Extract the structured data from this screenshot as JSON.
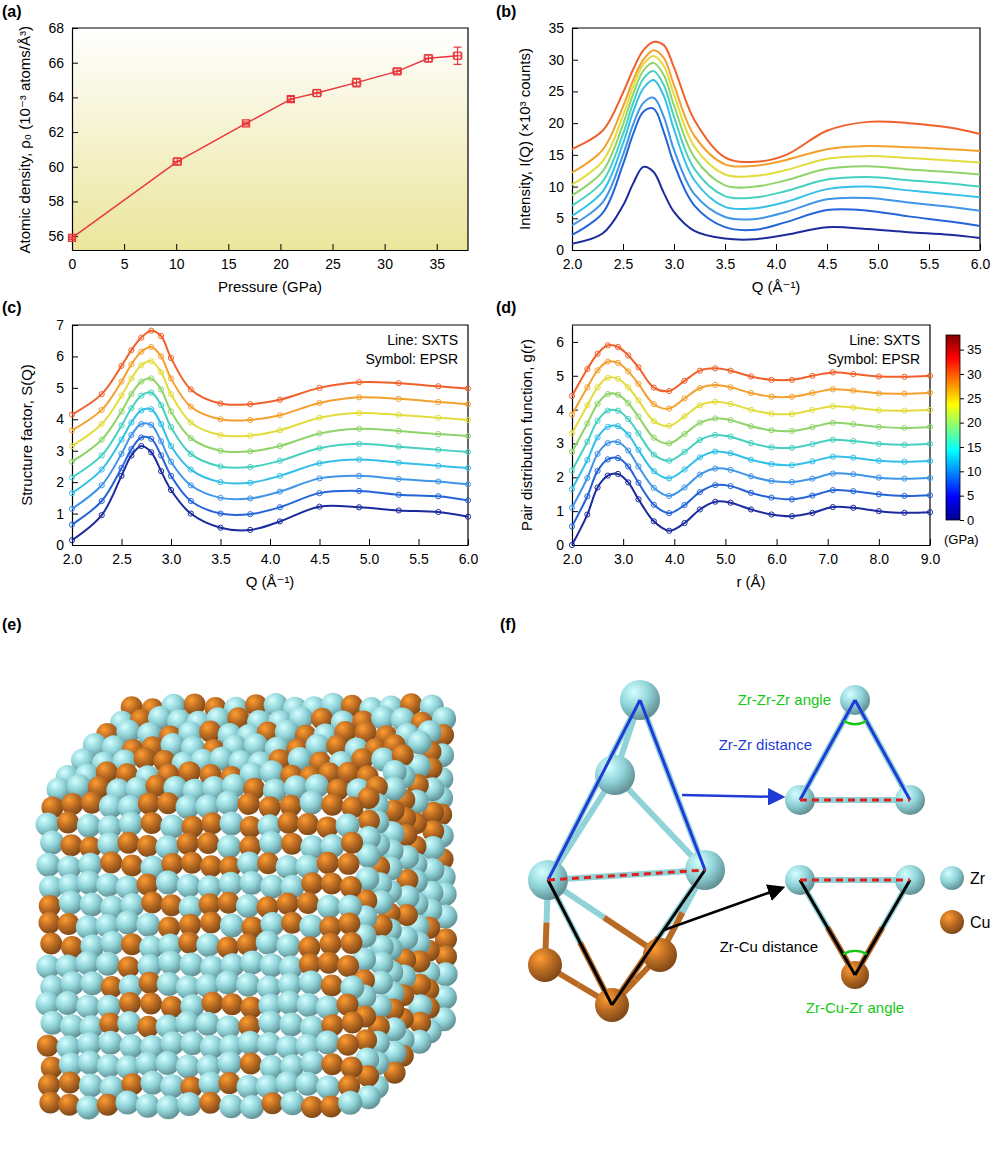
{
  "chart_data": [
    {
      "type": "line",
      "title": "(a)",
      "x_label": "Pressure (GPa)",
      "y_label": "Atomic density, ρ₀ (10⁻³ atoms/Å³)",
      "x": [
        0,
        10.1,
        16.7,
        21,
        23.5,
        27.3,
        31.2,
        34.2,
        37
      ],
      "series": [
        {
          "color": "#e8383d",
          "marker": "square",
          "values": [
            55.9,
            60.3,
            62.5,
            63.9,
            64.25,
            64.85,
            65.5,
            66.25,
            66.4
          ],
          "errors": [
            0.1,
            0.2,
            0.08,
            0.15,
            0.2,
            0.25,
            0.15,
            0.2,
            0.5
          ],
          "x_errors": [
            0.3,
            0.4,
            0.3,
            0.3,
            0.4,
            0.4,
            0.4,
            0.4,
            0.4
          ]
        }
      ],
      "line_style": "solid",
      "xlim": [
        0,
        38
      ],
      "xticks": [
        0,
        5,
        10,
        15,
        20,
        25,
        30,
        35
      ],
      "ylim": [
        55.2,
        68
      ],
      "yticks": [
        56,
        58,
        60,
        62,
        64,
        66,
        68
      ]
    },
    {
      "type": "line",
      "title": "(b)",
      "x_label": "Q (Å⁻¹)",
      "y_label": "Intensity, I(Q) (×10³ counts)",
      "x": [
        2.0,
        2.3,
        2.5,
        2.6,
        2.7,
        2.8,
        2.9,
        3.0,
        3.2,
        3.5,
        3.8,
        4.1,
        4.5,
        4.9,
        5.3,
        5.7,
        6.0
      ],
      "series": [
        {
          "color": "#1b2b9e",
          "values": [
            1.0,
            2.6,
            7.0,
            10.5,
            13.1,
            12.3,
            9.0,
            6.0,
            3.0,
            1.8,
            1.7,
            2.4,
            3.6,
            3.3,
            2.8,
            2.4,
            1.9
          ]
        },
        {
          "color": "#2464d8",
          "values": [
            2.4,
            5.8,
            13.5,
            18.3,
            21.8,
            22.3,
            18.6,
            13.6,
            7.0,
            3.6,
            3.2,
            4.4,
            6.3,
            6.2,
            5.3,
            4.5,
            3.8
          ]
        },
        {
          "color": "#3f95e8",
          "values": [
            3.9,
            7.5,
            15.0,
            19.8,
            23.2,
            24.0,
            21.0,
            15.8,
            8.8,
            5.2,
            4.9,
            6.0,
            8.0,
            8.2,
            7.5,
            6.8,
            6.2
          ]
        },
        {
          "color": "#33c0e8",
          "values": [
            5.4,
            9.2,
            16.8,
            21.8,
            25.5,
            26.8,
            24.3,
            19.0,
            11.0,
            6.8,
            6.6,
            7.6,
            9.6,
            10.0,
            9.4,
            8.8,
            8.3
          ]
        },
        {
          "color": "#45d0c0",
          "values": [
            7.0,
            10.8,
            18.3,
            23.2,
            27.0,
            28.2,
            26.0,
            21.0,
            12.8,
            8.5,
            8.3,
            9.3,
            11.1,
            11.5,
            11.0,
            10.5,
            10.0
          ]
        },
        {
          "color": "#8fd46a",
          "values": [
            8.6,
            12.4,
            19.8,
            24.6,
            28.3,
            29.5,
            27.6,
            22.8,
            14.6,
            10.2,
            10.0,
            11.0,
            12.8,
            13.2,
            12.7,
            12.3,
            11.9
          ]
        },
        {
          "color": "#e2dc3c",
          "values": [
            10.3,
            14.0,
            21.2,
            25.8,
            29.3,
            30.6,
            29.0,
            24.5,
            16.3,
            11.9,
            11.7,
            12.6,
            14.4,
            14.8,
            14.5,
            14.1,
            13.8
          ]
        },
        {
          "color": "#f4a02e",
          "values": [
            12.2,
            15.8,
            22.6,
            26.8,
            30.0,
            31.5,
            30.3,
            26.0,
            18.0,
            13.5,
            13.3,
            14.2,
            15.9,
            16.4,
            16.2,
            15.9,
            15.6
          ]
        },
        {
          "color": "#f0602a",
          "values": [
            15.9,
            18.8,
            24.8,
            28.5,
            31.5,
            32.8,
            32.3,
            28.8,
            20.5,
            14.6,
            13.9,
            15.0,
            18.8,
            20.2,
            20.0,
            19.3,
            18.3
          ]
        }
      ],
      "line_style": "smooth",
      "xlim": [
        2,
        6
      ],
      "xticks": [
        {
          "value": 2,
          "label": "2.0"
        },
        {
          "value": 2.5,
          "label": "2.5"
        },
        {
          "value": 3,
          "label": "3.0"
        },
        {
          "value": 3.5,
          "label": "3.5"
        },
        {
          "value": 4,
          "label": "4.0"
        },
        {
          "value": 4.5,
          "label": "4.5"
        },
        {
          "value": 5,
          "label": "5.0"
        },
        {
          "value": 5.5,
          "label": "5.5"
        },
        {
          "value": 6,
          "label": "6.0"
        }
      ],
      "ylim": [
        0,
        35
      ],
      "yticks": [
        0,
        5,
        10,
        15,
        20,
        25,
        30,
        35
      ]
    },
    {
      "type": "line",
      "title": "(c)",
      "x_label": "Q (Å⁻¹)",
      "y_label": "Structure factor, S(Q)",
      "annotations": [
        "Line: SXTS",
        "Symbol: EPSR"
      ],
      "x": [
        2.0,
        2.3,
        2.5,
        2.6,
        2.7,
        2.8,
        2.9,
        3.0,
        3.2,
        3.5,
        3.8,
        4.1,
        4.5,
        4.9,
        5.3,
        5.7,
        6.0
      ],
      "series": [
        {
          "color": "#1b2b9e",
          "marker": "circle",
          "values": [
            0.15,
            0.95,
            2.2,
            2.85,
            3.15,
            2.95,
            2.35,
            1.75,
            1.0,
            0.55,
            0.48,
            0.75,
            1.22,
            1.2,
            1.1,
            1.05,
            0.9
          ]
        },
        {
          "color": "#2464d8",
          "marker": "circle",
          "values": [
            0.65,
            1.4,
            2.45,
            3.05,
            3.42,
            3.38,
            2.85,
            2.2,
            1.4,
            1.0,
            0.98,
            1.2,
            1.65,
            1.72,
            1.6,
            1.55,
            1.42
          ]
        },
        {
          "color": "#3f95e8",
          "marker": "circle",
          "values": [
            1.15,
            1.9,
            2.9,
            3.5,
            3.85,
            3.82,
            3.3,
            2.65,
            1.9,
            1.5,
            1.48,
            1.7,
            2.12,
            2.2,
            2.1,
            2.02,
            1.93
          ]
        },
        {
          "color": "#33c0e8",
          "marker": "circle",
          "values": [
            1.65,
            2.4,
            3.35,
            3.9,
            4.28,
            4.32,
            3.85,
            3.15,
            2.4,
            2.0,
            1.98,
            2.2,
            2.6,
            2.72,
            2.62,
            2.52,
            2.45
          ]
        },
        {
          "color": "#45d0c0",
          "marker": "circle",
          "values": [
            2.15,
            2.85,
            3.8,
            4.35,
            4.75,
            4.85,
            4.45,
            3.75,
            2.9,
            2.5,
            2.48,
            2.68,
            3.08,
            3.22,
            3.13,
            3.03,
            2.96
          ]
        },
        {
          "color": "#8fd46a",
          "marker": "circle",
          "values": [
            2.65,
            3.35,
            4.25,
            4.8,
            5.2,
            5.3,
            4.95,
            4.25,
            3.4,
            3.0,
            2.98,
            3.15,
            3.55,
            3.7,
            3.63,
            3.53,
            3.47
          ]
        },
        {
          "color": "#e2dc3c",
          "marker": "circle",
          "values": [
            3.15,
            3.85,
            4.75,
            5.3,
            5.72,
            5.85,
            5.5,
            4.8,
            3.9,
            3.5,
            3.48,
            3.65,
            4.05,
            4.2,
            4.14,
            4.05,
            3.98
          ]
        },
        {
          "color": "#f4a02e",
          "marker": "circle",
          "values": [
            3.65,
            4.3,
            5.2,
            5.75,
            6.15,
            6.3,
            6.0,
            5.3,
            4.4,
            4.0,
            3.98,
            4.13,
            4.52,
            4.7,
            4.65,
            4.55,
            4.48
          ]
        },
        {
          "color": "#f0602a",
          "marker": "circle",
          "values": [
            4.15,
            4.8,
            5.7,
            6.2,
            6.6,
            6.82,
            6.65,
            5.95,
            4.95,
            4.5,
            4.48,
            4.62,
            5.0,
            5.18,
            5.15,
            5.05,
            4.98
          ]
        }
      ],
      "line_style": "smooth",
      "xlim": [
        2,
        6
      ],
      "xticks": [
        {
          "value": 2,
          "label": "2.0"
        },
        {
          "value": 2.5,
          "label": "2.5"
        },
        {
          "value": 3,
          "label": "3.0"
        },
        {
          "value": 3.5,
          "label": "3.5"
        },
        {
          "value": 4,
          "label": "4.0"
        },
        {
          "value": 4.5,
          "label": "4.5"
        },
        {
          "value": 5,
          "label": "5.0"
        },
        {
          "value": 5.5,
          "label": "5.5"
        },
        {
          "value": 6,
          "label": "6.0"
        }
      ],
      "ylim": [
        0,
        7
      ],
      "yticks": [
        0,
        1,
        2,
        3,
        4,
        5,
        6,
        7
      ]
    },
    {
      "type": "line",
      "title": "(d)",
      "x_label": "r (Å)",
      "y_label": "Pair distribution function, g(r)",
      "annotations": [
        "Line: SXTS",
        "Symbol: EPSR"
      ],
      "x": [
        2.0,
        2.3,
        2.5,
        2.7,
        2.9,
        3.1,
        3.3,
        3.6,
        3.9,
        4.2,
        4.5,
        4.8,
        5.1,
        5.5,
        5.9,
        6.3,
        6.7,
        7.1,
        7.5,
        8.0,
        8.5,
        9.0
      ],
      "series": [
        {
          "color": "#1b2b9e",
          "marker": "circle",
          "values": [
            0.0,
            0.9,
            1.7,
            2.05,
            2.1,
            1.85,
            1.35,
            0.7,
            0.42,
            0.65,
            1.05,
            1.28,
            1.25,
            1.05,
            0.9,
            0.85,
            0.95,
            1.12,
            1.1,
            1.0,
            0.95,
            0.97
          ]
        },
        {
          "color": "#2464d8",
          "marker": "circle",
          "values": [
            0.55,
            1.44,
            2.19,
            2.53,
            2.57,
            2.32,
            1.84,
            1.19,
            0.94,
            1.18,
            1.56,
            1.77,
            1.74,
            1.54,
            1.4,
            1.35,
            1.46,
            1.62,
            1.59,
            1.5,
            1.45,
            1.47
          ]
        },
        {
          "color": "#3f95e8",
          "marker": "circle",
          "values": [
            1.1,
            1.98,
            2.69,
            3.01,
            3.04,
            2.79,
            2.32,
            1.69,
            1.45,
            1.7,
            2.08,
            2.26,
            2.22,
            2.03,
            1.89,
            1.86,
            1.96,
            2.11,
            2.09,
            1.99,
            1.96,
            1.98
          ]
        },
        {
          "color": "#33c0e8",
          "marker": "circle",
          "values": [
            1.65,
            2.51,
            3.18,
            3.49,
            3.51,
            3.26,
            2.81,
            2.18,
            1.97,
            2.23,
            2.59,
            2.76,
            2.71,
            2.52,
            2.39,
            2.36,
            2.47,
            2.61,
            2.58,
            2.49,
            2.46,
            2.48
          ]
        },
        {
          "color": "#45d0c0",
          "marker": "circle",
          "values": [
            2.2,
            3.05,
            3.67,
            3.97,
            3.97,
            3.72,
            3.3,
            2.67,
            2.49,
            2.75,
            3.1,
            3.25,
            3.2,
            3.01,
            2.89,
            2.87,
            2.98,
            3.11,
            3.07,
            2.99,
            2.96,
            2.99
          ]
        },
        {
          "color": "#8fd46a",
          "marker": "circle",
          "values": [
            2.75,
            3.59,
            4.17,
            4.46,
            4.44,
            4.19,
            3.79,
            3.17,
            3.0,
            3.28,
            3.61,
            3.74,
            3.69,
            3.51,
            3.39,
            3.37,
            3.48,
            3.61,
            3.57,
            3.49,
            3.46,
            3.49
          ]
        },
        {
          "color": "#e2dc3c",
          "marker": "circle",
          "values": [
            3.3,
            4.13,
            4.66,
            4.94,
            4.91,
            4.66,
            4.27,
            3.66,
            3.52,
            3.8,
            4.13,
            4.23,
            4.17,
            4.0,
            3.88,
            3.87,
            3.99,
            4.1,
            4.06,
            3.98,
            3.97,
            3.99
          ]
        },
        {
          "color": "#f4a02e",
          "marker": "circle",
          "values": [
            3.85,
            4.66,
            5.16,
            5.42,
            5.38,
            5.13,
            4.76,
            4.16,
            4.03,
            4.33,
            4.64,
            4.73,
            4.66,
            4.49,
            4.38,
            4.38,
            4.49,
            4.6,
            4.56,
            4.48,
            4.47,
            4.5
          ]
        },
        {
          "color": "#f0602a",
          "marker": "circle",
          "values": [
            4.4,
            5.2,
            5.65,
            5.9,
            5.85,
            5.6,
            5.25,
            4.65,
            4.55,
            4.85,
            5.15,
            5.22,
            5.15,
            4.98,
            4.88,
            4.88,
            5.0,
            5.1,
            5.05,
            4.98,
            4.97,
            5.0
          ]
        }
      ],
      "line_style": "smooth",
      "xlim": [
        2,
        9
      ],
      "xticks": [
        {
          "value": 2,
          "label": "2.0"
        },
        {
          "value": 3,
          "label": "3.0"
        },
        {
          "value": 4,
          "label": "4.0"
        },
        {
          "value": 5,
          "label": "5.0"
        },
        {
          "value": 6,
          "label": "6.0"
        },
        {
          "value": 7,
          "label": "7.0"
        },
        {
          "value": 8,
          "label": "8.0"
        },
        {
          "value": 9,
          "label": "9.0"
        }
      ],
      "ylim": [
        0,
        6.5
      ],
      "yticks": [
        0,
        1,
        2,
        3,
        4,
        5,
        6
      ],
      "colorbar": {
        "range": [
          0,
          38
        ],
        "ticks": [
          0,
          5,
          10,
          15,
          20,
          25,
          30,
          35
        ],
        "label": "(GPa)"
      }
    }
  ],
  "structure_panels": {
    "e": {
      "label": "(e)"
    },
    "f": {
      "label": "(f)",
      "zr_zr_zr_angle": "Zr-Zr-Zr angle",
      "zr_zr_distance": "Zr-Zr distance",
      "zr_cu_distance": "Zr-Cu distance",
      "zr_cu_zr_angle": "Zr-Cu-Zr angle",
      "legend": [
        {
          "label": "Zr",
          "color": "#8fd3d8"
        },
        {
          "label": "Cu",
          "color": "#b86a22"
        }
      ]
    }
  }
}
